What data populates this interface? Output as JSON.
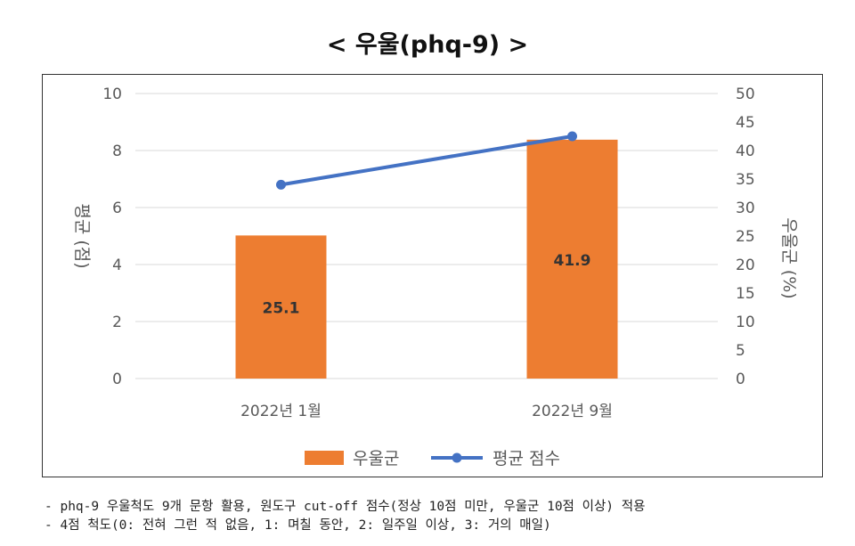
{
  "title": "< 우울(phq-9) >",
  "notes": [
    "- phq-9 우울척도 9개 문항 활용, 원도구 cut-off 점수(정상 10점 미만, 우울군 10점 이상) 적용",
    "- 4점 척도(0: 전혀 그런 적 없음, 1: 며칠 동안, 2: 일주일 이상, 3: 거의 매일)"
  ],
  "colors": {
    "bar": "#ED7D31",
    "line": "#4472C4",
    "grid": "#D9D9D9",
    "axis_text": "#595959"
  },
  "chart_data": {
    "type": "bar+line",
    "categories": [
      "2022년 1월",
      "2022년 9월"
    ],
    "series": [
      {
        "name": "우울군",
        "type": "bar",
        "axis": "right",
        "values": [
          25.1,
          41.9
        ],
        "color": "#ED7D31"
      },
      {
        "name": "평균 점수",
        "type": "line",
        "axis": "left",
        "values": [
          6.8,
          8.5
        ],
        "color": "#4472C4"
      }
    ],
    "left_axis": {
      "label": "평균 (점)",
      "ylim": [
        0,
        10
      ],
      "ticks": [
        0,
        2,
        4,
        6,
        8,
        10
      ]
    },
    "right_axis": {
      "label": "우울군 (%)",
      "ylim": [
        0,
        50
      ],
      "ticks": [
        0,
        5,
        10,
        15,
        20,
        25,
        30,
        35,
        40,
        45,
        50
      ]
    },
    "data_labels": [
      "25.1",
      "41.9"
    ],
    "legend_position": "bottom",
    "grid": true
  }
}
